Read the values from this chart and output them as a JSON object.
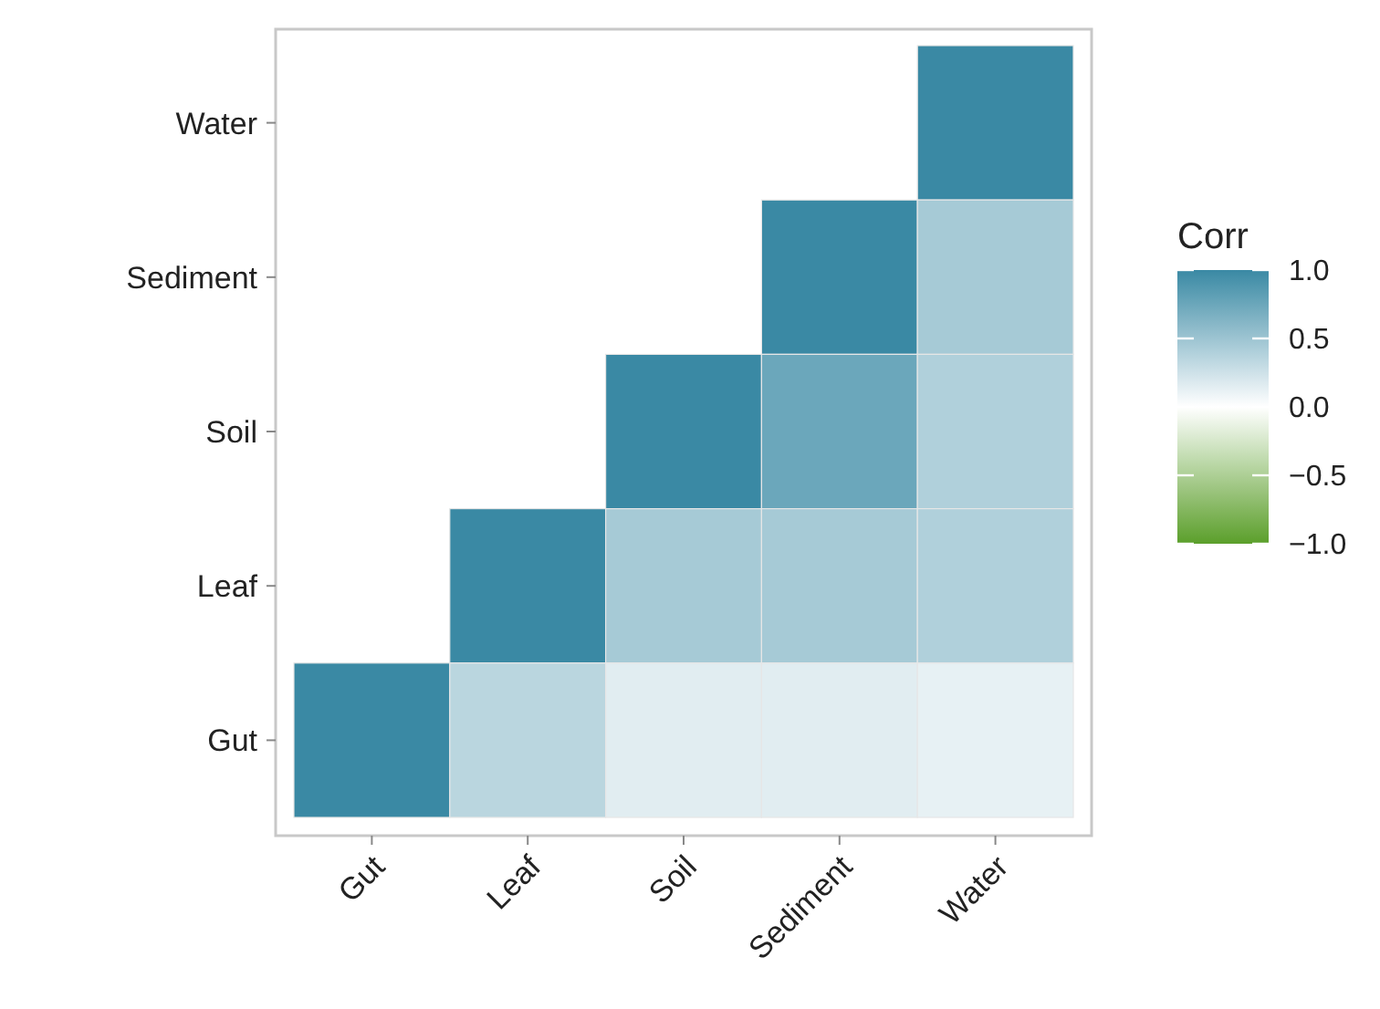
{
  "chart_data": {
    "type": "heatmap",
    "categories": [
      "Gut",
      "Leaf",
      "Soil",
      "Sediment",
      "Water"
    ],
    "y_categories": [
      "Water",
      "Sediment",
      "Soil",
      "Leaf",
      "Gut"
    ],
    "cells": [
      [
        null,
        null,
        null,
        null,
        1
      ],
      [
        null,
        null,
        null,
        1,
        0.45
      ],
      [
        null,
        null,
        1,
        0.75,
        0.4
      ],
      [
        null,
        1,
        0.45,
        0.45,
        0.4
      ],
      [
        1,
        0.35,
        0.15,
        0.15,
        0.12
      ]
    ],
    "clabel": "Corr",
    "clim": [
      -1,
      1
    ],
    "cticks": [
      {
        "value": 1,
        "label": "1.0"
      },
      {
        "value": 0.5,
        "label": "0.5"
      },
      {
        "value": 0,
        "label": "0.0"
      },
      {
        "value": -0.5,
        "label": "−0.5"
      },
      {
        "value": -1,
        "label": "−1.0"
      }
    ]
  }
}
